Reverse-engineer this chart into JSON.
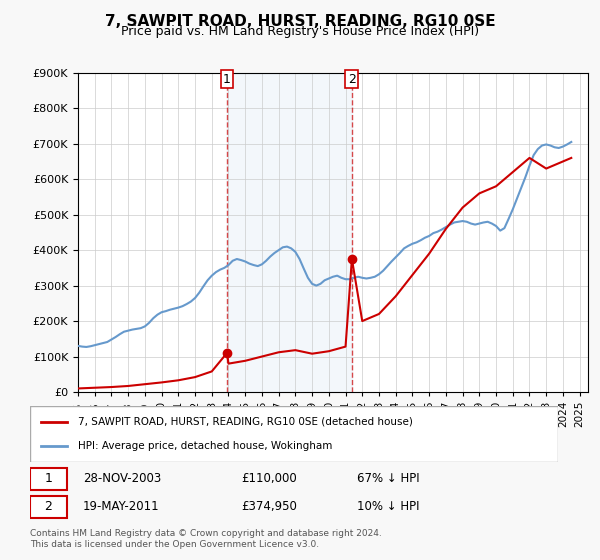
{
  "title": "7, SAWPIT ROAD, HURST, READING, RG10 0SE",
  "subtitle": "Price paid vs. HM Land Registry's House Price Index (HPI)",
  "ylabel_values": [
    "£0",
    "£100K",
    "£200K",
    "£300K",
    "£400K",
    "£500K",
    "£600K",
    "£700K",
    "£800K",
    "£900K"
  ],
  "ylim": [
    0,
    900000
  ],
  "yticks": [
    0,
    100000,
    200000,
    300000,
    400000,
    500000,
    600000,
    700000,
    800000,
    900000
  ],
  "xlim_start": 1995.0,
  "xlim_end": 2025.5,
  "sale1_x": 2003.91,
  "sale1_y": 110000,
  "sale1_label": "1",
  "sale1_date": "28-NOV-2003",
  "sale1_price": "£110,000",
  "sale1_hpi": "67% ↓ HPI",
  "sale2_x": 2011.38,
  "sale2_y": 374950,
  "sale2_label": "2",
  "sale2_date": "19-MAY-2011",
  "sale2_price": "£374,950",
  "sale2_hpi": "10% ↓ HPI",
  "vline1_x": 2003.91,
  "vline2_x": 2011.38,
  "legend_red_label": "7, SAWPIT ROAD, HURST, READING, RG10 0SE (detached house)",
  "legend_blue_label": "HPI: Average price, detached house, Wokingham",
  "footer": "Contains HM Land Registry data © Crown copyright and database right 2024.\nThis data is licensed under the Open Government Licence v3.0.",
  "red_color": "#cc0000",
  "blue_color": "#6699cc",
  "vline_color": "#cc0000",
  "background_color": "#f0f4ff",
  "plot_bg": "#ffffff",
  "hpi_data_x": [
    1995.0,
    1995.25,
    1995.5,
    1995.75,
    1996.0,
    1996.25,
    1996.5,
    1996.75,
    1997.0,
    1997.25,
    1997.5,
    1997.75,
    1998.0,
    1998.25,
    1998.5,
    1998.75,
    1999.0,
    1999.25,
    1999.5,
    1999.75,
    2000.0,
    2000.25,
    2000.5,
    2000.75,
    2001.0,
    2001.25,
    2001.5,
    2001.75,
    2002.0,
    2002.25,
    2002.5,
    2002.75,
    2003.0,
    2003.25,
    2003.5,
    2003.75,
    2004.0,
    2004.25,
    2004.5,
    2004.75,
    2005.0,
    2005.25,
    2005.5,
    2005.75,
    2006.0,
    2006.25,
    2006.5,
    2006.75,
    2007.0,
    2007.25,
    2007.5,
    2007.75,
    2008.0,
    2008.25,
    2008.5,
    2008.75,
    2009.0,
    2009.25,
    2009.5,
    2009.75,
    2010.0,
    2010.25,
    2010.5,
    2010.75,
    2011.0,
    2011.25,
    2011.5,
    2011.75,
    2012.0,
    2012.25,
    2012.5,
    2012.75,
    2013.0,
    2013.25,
    2013.5,
    2013.75,
    2014.0,
    2014.25,
    2014.5,
    2014.75,
    2015.0,
    2015.25,
    2015.5,
    2015.75,
    2016.0,
    2016.25,
    2016.5,
    2016.75,
    2017.0,
    2017.25,
    2017.5,
    2017.75,
    2018.0,
    2018.25,
    2018.5,
    2018.75,
    2019.0,
    2019.25,
    2019.5,
    2019.75,
    2020.0,
    2020.25,
    2020.5,
    2020.75,
    2021.0,
    2021.25,
    2021.5,
    2021.75,
    2022.0,
    2022.25,
    2022.5,
    2022.75,
    2023.0,
    2023.25,
    2023.5,
    2023.75,
    2024.0,
    2024.25,
    2024.5
  ],
  "hpi_data_y": [
    130000,
    128000,
    127000,
    129000,
    132000,
    135000,
    138000,
    141000,
    148000,
    155000,
    163000,
    170000,
    173000,
    176000,
    178000,
    180000,
    185000,
    195000,
    208000,
    218000,
    225000,
    228000,
    232000,
    235000,
    238000,
    242000,
    248000,
    255000,
    265000,
    280000,
    298000,
    315000,
    328000,
    338000,
    345000,
    350000,
    358000,
    370000,
    375000,
    372000,
    368000,
    362000,
    358000,
    355000,
    360000,
    370000,
    382000,
    392000,
    400000,
    408000,
    410000,
    405000,
    395000,
    375000,
    348000,
    322000,
    305000,
    300000,
    305000,
    315000,
    320000,
    325000,
    328000,
    322000,
    318000,
    318000,
    322000,
    325000,
    322000,
    320000,
    322000,
    325000,
    332000,
    342000,
    355000,
    368000,
    380000,
    392000,
    405000,
    412000,
    418000,
    422000,
    428000,
    435000,
    440000,
    448000,
    452000,
    458000,
    465000,
    472000,
    478000,
    480000,
    482000,
    480000,
    475000,
    472000,
    475000,
    478000,
    480000,
    475000,
    468000,
    455000,
    462000,
    488000,
    515000,
    545000,
    575000,
    605000,
    638000,
    668000,
    685000,
    695000,
    698000,
    695000,
    690000,
    688000,
    692000,
    698000,
    705000
  ],
  "price_data_x": [
    1995.0,
    1996.0,
    1997.0,
    1998.0,
    1999.0,
    2000.0,
    2001.0,
    2002.0,
    2003.0,
    2003.91,
    2004.0,
    2005.0,
    2006.0,
    2007.0,
    2008.0,
    2009.0,
    2010.0,
    2011.0,
    2011.38,
    2012.0,
    2013.0,
    2014.0,
    2015.0,
    2016.0,
    2017.0,
    2018.0,
    2019.0,
    2020.0,
    2021.0,
    2022.0,
    2023.0,
    2024.0,
    2024.5
  ],
  "price_data_y": [
    10000,
    12000,
    14000,
    17000,
    22000,
    27000,
    33000,
    42000,
    58000,
    110000,
    80000,
    88000,
    100000,
    112000,
    118000,
    108000,
    115000,
    128000,
    374950,
    200000,
    220000,
    270000,
    330000,
    390000,
    460000,
    520000,
    560000,
    580000,
    620000,
    660000,
    630000,
    650000,
    660000
  ]
}
